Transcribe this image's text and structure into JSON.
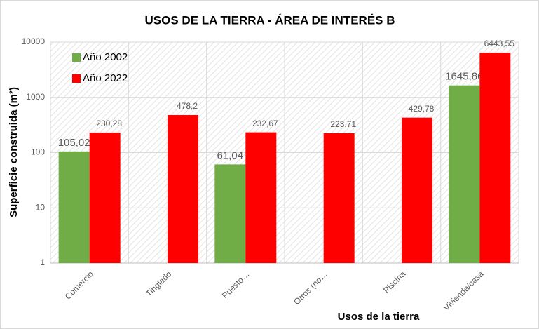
{
  "chart_data": {
    "type": "bar",
    "title": "USOS DE LA TIERRA - ÁREA DE INTERÉS B",
    "x_label": "Usos de la tierra",
    "y_label": "Superficie construida (m²)",
    "categories": [
      "Comercio",
      "Tinglado",
      "Puesto…",
      "Otros (no…",
      "Piscina",
      "Vivienda/casa"
    ],
    "series": [
      {
        "name": "Año 2002",
        "color": "#70ad47",
        "values": [
          105.02,
          null,
          61.04,
          null,
          null,
          1645.86
        ],
        "value_labels": [
          "105,02",
          null,
          "61,04",
          null,
          null,
          "1645,86"
        ]
      },
      {
        "name": "Año 2022",
        "color": "#ff0000",
        "values": [
          230.28,
          478.2,
          232.67,
          223.71,
          429.78,
          6443.55
        ],
        "value_labels": [
          "230,28",
          "478,2",
          "232,67",
          "223,71",
          "429,78",
          "6443,55"
        ]
      }
    ],
    "log_scale": true,
    "ylim": [
      1,
      10000
    ],
    "yticks": [
      1,
      10,
      100,
      1000,
      10000
    ],
    "grid": true,
    "legend": "top-left"
  }
}
